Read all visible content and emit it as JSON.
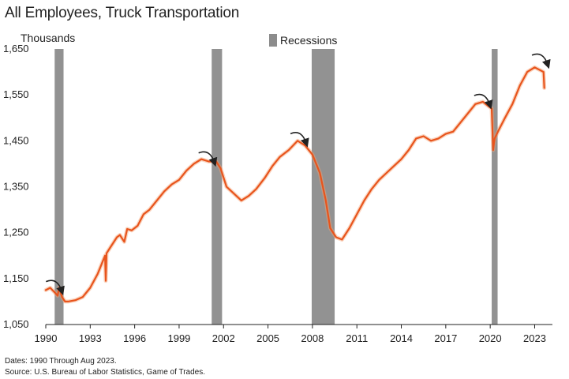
{
  "chart_data": {
    "type": "line",
    "title": "All Employees, Truck Transportation",
    "ylabel": "Thousands",
    "legend": {
      "label": "Recessions",
      "placement": "top-center",
      "color": "#8c8c8c"
    },
    "xlim": [
      1990.0,
      2024.2
    ],
    "ylim": [
      1050,
      1650
    ],
    "x_ticks": [
      "1990",
      "1993",
      "1996",
      "1999",
      "2002",
      "2005",
      "2008",
      "2011",
      "2014",
      "2017",
      "2020",
      "2023"
    ],
    "y_ticks": [
      "1,650",
      "1,550",
      "1,450",
      "1,350",
      "1,250",
      "1,150",
      "1,050"
    ],
    "recessions": [
      {
        "start": 1990.6,
        "end": 1991.2
      },
      {
        "start": 2001.2,
        "end": 2001.9
      },
      {
        "start": 2007.95,
        "end": 2009.5
      },
      {
        "start": 2020.1,
        "end": 2020.5
      }
    ],
    "line_color": "#e8541c",
    "series": [
      {
        "x": [
          1990.0,
          1990.3,
          1990.6,
          1990.8,
          1990.9,
          1991.1,
          1991.3,
          1991.5,
          1992.0,
          1992.5,
          1993.0,
          1993.5,
          1994.0,
          1994.05,
          1994.1,
          1994.3,
          1994.8,
          1995.0,
          1995.3,
          1995.5,
          1995.8,
          1996.2,
          1996.6,
          1997.0,
          1997.5,
          1998.0,
          1998.5,
          1999.0,
          1999.5,
          2000.0,
          2000.5,
          2001.0,
          2001.5,
          2001.8,
          2002.2,
          2002.7,
          2003.2,
          2003.7,
          2004.2,
          2004.8,
          2005.3,
          2005.8,
          2006.4,
          2007.0,
          2007.5,
          2008.0,
          2008.5,
          2008.9,
          2009.2,
          2009.6,
          2010.0,
          2010.5,
          2011.0,
          2011.5,
          2012.0,
          2012.5,
          2013.0,
          2013.5,
          2014.0,
          2014.5,
          2015.0,
          2015.5,
          2016.0,
          2016.5,
          2017.0,
          2017.5,
          2018.0,
          2018.5,
          2019.0,
          2019.5,
          2019.9,
          2020.1,
          2020.2,
          2020.25,
          2020.3,
          2020.6,
          2021.0,
          2021.5,
          2022.0,
          2022.5,
          2023.0,
          2023.3,
          2023.6,
          2023.65
        ],
        "y": [
          1125,
          1130,
          1120,
          1113,
          1130,
          1110,
          1100,
          1100,
          1103,
          1110,
          1130,
          1160,
          1200,
          1145,
          1205,
          1215,
          1240,
          1245,
          1230,
          1258,
          1255,
          1265,
          1290,
          1300,
          1320,
          1340,
          1355,
          1365,
          1385,
          1400,
          1410,
          1405,
          1405,
          1390,
          1350,
          1335,
          1320,
          1330,
          1345,
          1370,
          1395,
          1415,
          1430,
          1450,
          1440,
          1420,
          1380,
          1320,
          1260,
          1240,
          1235,
          1260,
          1290,
          1320,
          1345,
          1365,
          1380,
          1395,
          1410,
          1430,
          1455,
          1460,
          1450,
          1455,
          1465,
          1470,
          1490,
          1510,
          1530,
          1535,
          1525,
          1520,
          1430,
          1445,
          1455,
          1475,
          1500,
          1530,
          1570,
          1600,
          1610,
          1605,
          1600,
          1565
        ]
      }
    ]
  },
  "footnotes": {
    "dates": "Dates: 1990 Through Aug 2023.",
    "source": "Source: U.S. Bureau of Labor Statistics, Game of Trades."
  },
  "annotations": {
    "arrow_count": 5,
    "arrow_icon": "curved-arrow-down-right-icon"
  }
}
